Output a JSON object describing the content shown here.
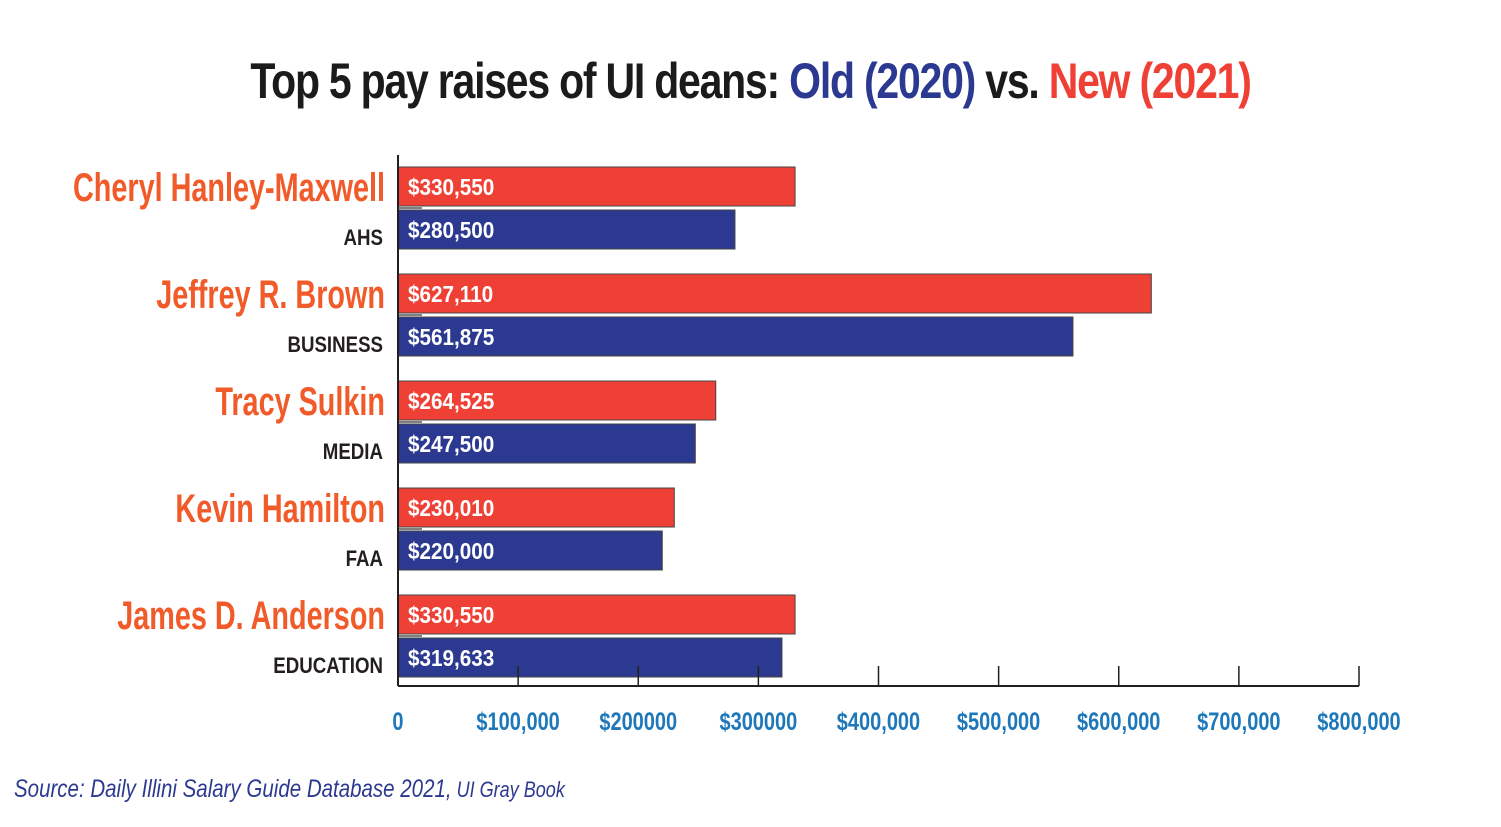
{
  "title": {
    "prefix": "Top 5 pay raises of UI deans: ",
    "old_label": "Old (2020)",
    "middle": " vs. ",
    "new_label": "New (2021)"
  },
  "colors": {
    "old": "#2c3990",
    "new": "#ef4036",
    "name_text": "#f15a29",
    "dept_text": "#231f20",
    "tick_text": "#1d77b9",
    "title_text": "#1b1b1b"
  },
  "source": {
    "main": "Source: Daily Illini Salary Guide Database 2021,",
    "secondary": " UI Gray Book"
  },
  "chart_data": {
    "type": "bar",
    "orientation": "horizontal",
    "title": "Top 5 pay raises of UI deans: Old (2020) vs. New (2021)",
    "xlabel": "",
    "ylabel": "",
    "xlim": [
      0,
      800000
    ],
    "grid": false,
    "legend": "in-title",
    "categories": [
      {
        "name": "Cheryl Hanley-Maxwell",
        "dept": "AHS"
      },
      {
        "name": "Jeffrey R. Brown",
        "dept": "BUSINESS"
      },
      {
        "name": "Tracy Sulkin",
        "dept": "MEDIA"
      },
      {
        "name": "Kevin Hamilton",
        "dept": "FAA"
      },
      {
        "name": "James D. Anderson",
        "dept": "EDUCATION"
      }
    ],
    "series": [
      {
        "name": "New (2021)",
        "color": "#ef4036",
        "values": [
          330550,
          627110,
          264525,
          230010,
          330550
        ],
        "labels": [
          "$330,550",
          "$627,110",
          "$264,525",
          "$230,010",
          "$330,550"
        ]
      },
      {
        "name": "Old (2020)",
        "color": "#2c3990",
        "values": [
          280500,
          561875,
          247500,
          220000,
          319633
        ],
        "labels": [
          "$280,500",
          "$561,875",
          "$247,500",
          "$220,000",
          "$319,633"
        ]
      }
    ],
    "ticks": [
      {
        "value": 0,
        "label": "0"
      },
      {
        "value": 100000,
        "label": "$100,000"
      },
      {
        "value": 200000,
        "label": "$200000"
      },
      {
        "value": 300000,
        "label": "$300000"
      },
      {
        "value": 400000,
        "label": "$400,000"
      },
      {
        "value": 500000,
        "label": "$500,000"
      },
      {
        "value": 600000,
        "label": "$600,000"
      },
      {
        "value": 700000,
        "label": "$700,000"
      },
      {
        "value": 800000,
        "label": "$800,000"
      }
    ]
  }
}
